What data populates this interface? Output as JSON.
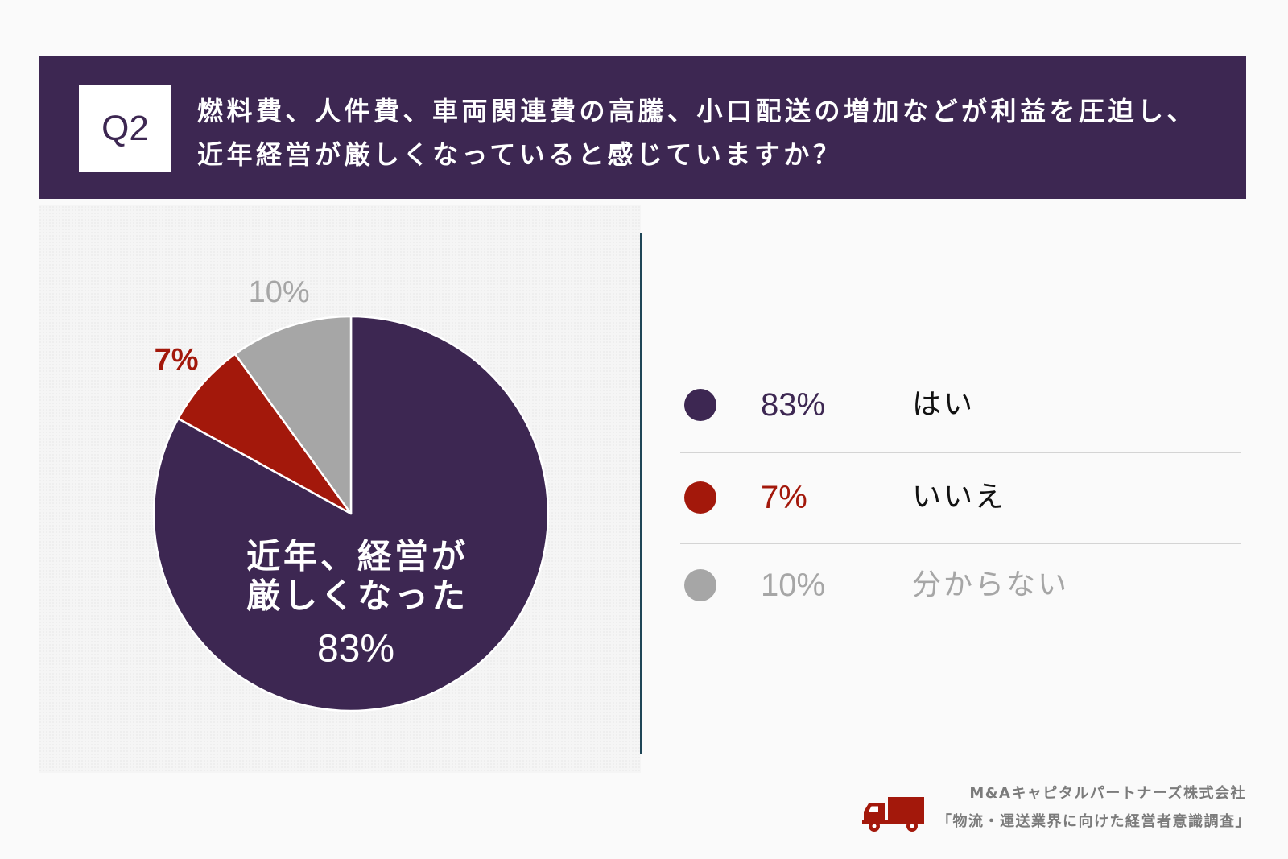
{
  "theme": {
    "primary": "#3d2752",
    "divider": "#1e4556",
    "footer_text": "#7b7b7b",
    "brand_red": "#a3180b"
  },
  "header": {
    "badge": "Q2",
    "question_line1": "燃料費、人件費、車両関連費の高騰、小口配送の増加などが利益を圧迫し、",
    "question_line2": "近年経営が厳しくなっていると感じていますか？"
  },
  "chart_data": {
    "type": "pie",
    "categories": [
      "はい",
      "いいえ",
      "分からない"
    ],
    "values": [
      83,
      7,
      10
    ],
    "data_labels": [
      "83%",
      "7%",
      "10%"
    ],
    "colors": [
      "#3d2752",
      "#a3180b",
      "#a6a6a6"
    ],
    "annotation": [
      "近年、経営が",
      "厳しくなった"
    ],
    "legend_placement": "right"
  },
  "footer": {
    "icon": "truck-icon",
    "company": "M&Aキャピタルパートナーズ株式会社",
    "survey_title": "「物流・運送業界に向けた経営者意識調査」"
  }
}
